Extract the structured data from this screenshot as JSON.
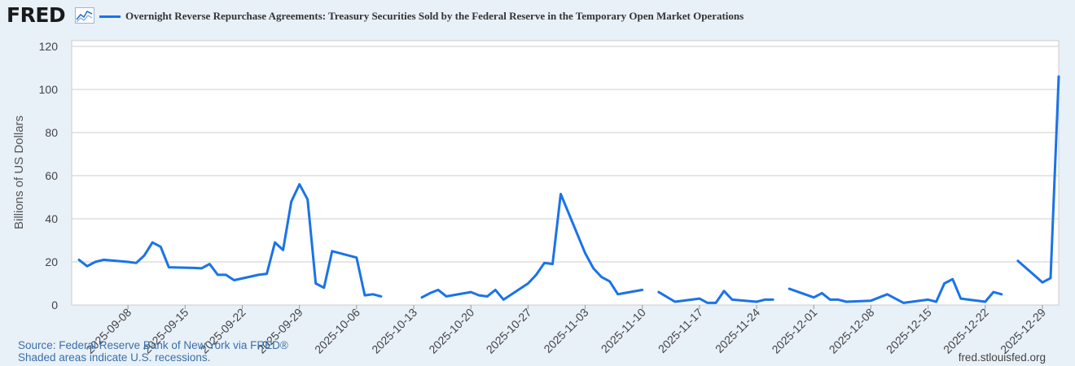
{
  "header": {
    "logo_text": "FRED",
    "logo_icon": "fred-line-graph-icon",
    "series_title": "Overnight Reverse Repurchase Agreements: Treasury Securities Sold by the Federal Reserve in the Temporary Open Market Operations"
  },
  "colors": {
    "series": "#1a73e8",
    "plot_background": "#ffffff",
    "page_background": "#e8f0f8",
    "grid": "#cccccc"
  },
  "chart_data": {
    "type": "line",
    "title": "Overnight Reverse Repurchase Agreements: Treasury Securities Sold by the Federal Reserve in the Temporary Open Market Operations",
    "xlabel": "",
    "ylabel": "Billions of US Dollars",
    "ylim": [
      0,
      120
    ],
    "yticks": [
      0,
      20,
      40,
      60,
      80,
      100,
      120
    ],
    "xlim": [
      "2025-09-02",
      "2025-12-31"
    ],
    "xticks": [
      "2025-09-08",
      "2025-09-15",
      "2025-09-22",
      "2025-09-29",
      "2025-10-06",
      "2025-10-13",
      "2025-10-20",
      "2025-10-27",
      "2025-11-03",
      "2025-11-10",
      "2025-11-17",
      "2025-11-24",
      "2025-12-01",
      "2025-12-08",
      "2025-12-15",
      "2025-12-22",
      "2025-12-29"
    ],
    "grid": true,
    "series": [
      {
        "name": "Overnight Reverse Repurchase Agreements: Treasury Securities Sold by the Federal Reserve in the Temporary Open Market Operations",
        "segments": [
          [
            [
              "2025-09-02",
              21.0
            ],
            [
              "2025-09-03",
              18.0
            ],
            [
              "2025-09-04",
              20.0
            ],
            [
              "2025-09-05",
              21.0
            ],
            [
              "2025-09-08",
              20.0
            ],
            [
              "2025-09-09",
              19.5
            ],
            [
              "2025-09-10",
              23.0
            ],
            [
              "2025-09-11",
              29.0
            ],
            [
              "2025-09-12",
              27.0
            ],
            [
              "2025-09-13",
              17.5
            ],
            [
              "2025-09-16",
              17.2
            ],
            [
              "2025-09-17",
              17.0
            ],
            [
              "2025-09-18",
              19.0
            ],
            [
              "2025-09-19",
              14.0
            ],
            [
              "2025-09-20",
              14.0
            ],
            [
              "2025-09-21",
              11.5
            ],
            [
              "2025-09-24",
              14.0
            ],
            [
              "2025-09-25",
              14.5
            ],
            [
              "2025-09-26",
              29.0
            ],
            [
              "2025-09-27",
              25.5
            ],
            [
              "2025-09-28",
              48.0
            ],
            [
              "2025-09-29",
              56.0
            ],
            [
              "2025-09-30",
              49.0
            ],
            [
              "2025-10-01",
              10.0
            ],
            [
              "2025-10-02",
              8.0
            ],
            [
              "2025-10-03",
              25.0
            ],
            [
              "2025-10-06",
              22.0
            ],
            [
              "2025-10-07",
              4.5
            ],
            [
              "2025-10-08",
              5.0
            ],
            [
              "2025-10-09",
              4.0
            ]
          ],
          [
            [
              "2025-10-14",
              3.5
            ],
            [
              "2025-10-15",
              5.5
            ],
            [
              "2025-10-16",
              7.0
            ],
            [
              "2025-10-17",
              4.0
            ],
            [
              "2025-10-20",
              6.0
            ],
            [
              "2025-10-21",
              4.5
            ],
            [
              "2025-10-22",
              4.0
            ],
            [
              "2025-10-23",
              7.0
            ],
            [
              "2025-10-24",
              2.5
            ],
            [
              "2025-10-27",
              10.0
            ],
            [
              "2025-10-28",
              14.0
            ],
            [
              "2025-10-29",
              19.5
            ],
            [
              "2025-10-30",
              19.0
            ],
            [
              "2025-10-31",
              51.5
            ],
            [
              "2025-11-03",
              24.0
            ],
            [
              "2025-11-04",
              17.0
            ],
            [
              "2025-11-05",
              13.0
            ],
            [
              "2025-11-06",
              11.0
            ],
            [
              "2025-11-07",
              5.0
            ],
            [
              "2025-11-10",
              7.0
            ]
          ],
          [
            [
              "2025-11-12",
              6.0
            ],
            [
              "2025-11-14",
              1.5
            ],
            [
              "2025-11-17",
              3.0
            ],
            [
              "2025-11-18",
              1.0
            ],
            [
              "2025-11-19",
              1.0
            ],
            [
              "2025-11-20",
              6.5
            ],
            [
              "2025-11-21",
              2.5
            ],
            [
              "2025-11-24",
              1.5
            ],
            [
              "2025-11-25",
              2.5
            ],
            [
              "2025-11-26",
              2.5
            ]
          ],
          [
            [
              "2025-11-28",
              7.5
            ],
            [
              "2025-12-01",
              3.5
            ],
            [
              "2025-12-02",
              5.5
            ],
            [
              "2025-12-03",
              2.5
            ],
            [
              "2025-12-04",
              2.5
            ],
            [
              "2025-12-05",
              1.5
            ],
            [
              "2025-12-08",
              2.0
            ],
            [
              "2025-12-10",
              5.0
            ],
            [
              "2025-12-12",
              1.0
            ],
            [
              "2025-12-15",
              2.5
            ],
            [
              "2025-12-16",
              1.5
            ],
            [
              "2025-12-17",
              10.0
            ],
            [
              "2025-12-18",
              12.0
            ],
            [
              "2025-12-19",
              3.0
            ],
            [
              "2025-12-22",
              1.5
            ],
            [
              "2025-12-23",
              6.0
            ],
            [
              "2025-12-24",
              5.0
            ]
          ],
          [
            [
              "2025-12-26",
              20.5
            ],
            [
              "2025-12-29",
              10.5
            ],
            [
              "2025-12-30",
              12.5
            ],
            [
              "2025-12-31",
              106.0
            ]
          ]
        ]
      }
    ]
  },
  "footer": {
    "source": "Source: Federal Reserve Bank of New York via FRED®",
    "recessions": "Shaded areas indicate U.S. recessions.",
    "site": "fred.stlouisfed.org"
  }
}
